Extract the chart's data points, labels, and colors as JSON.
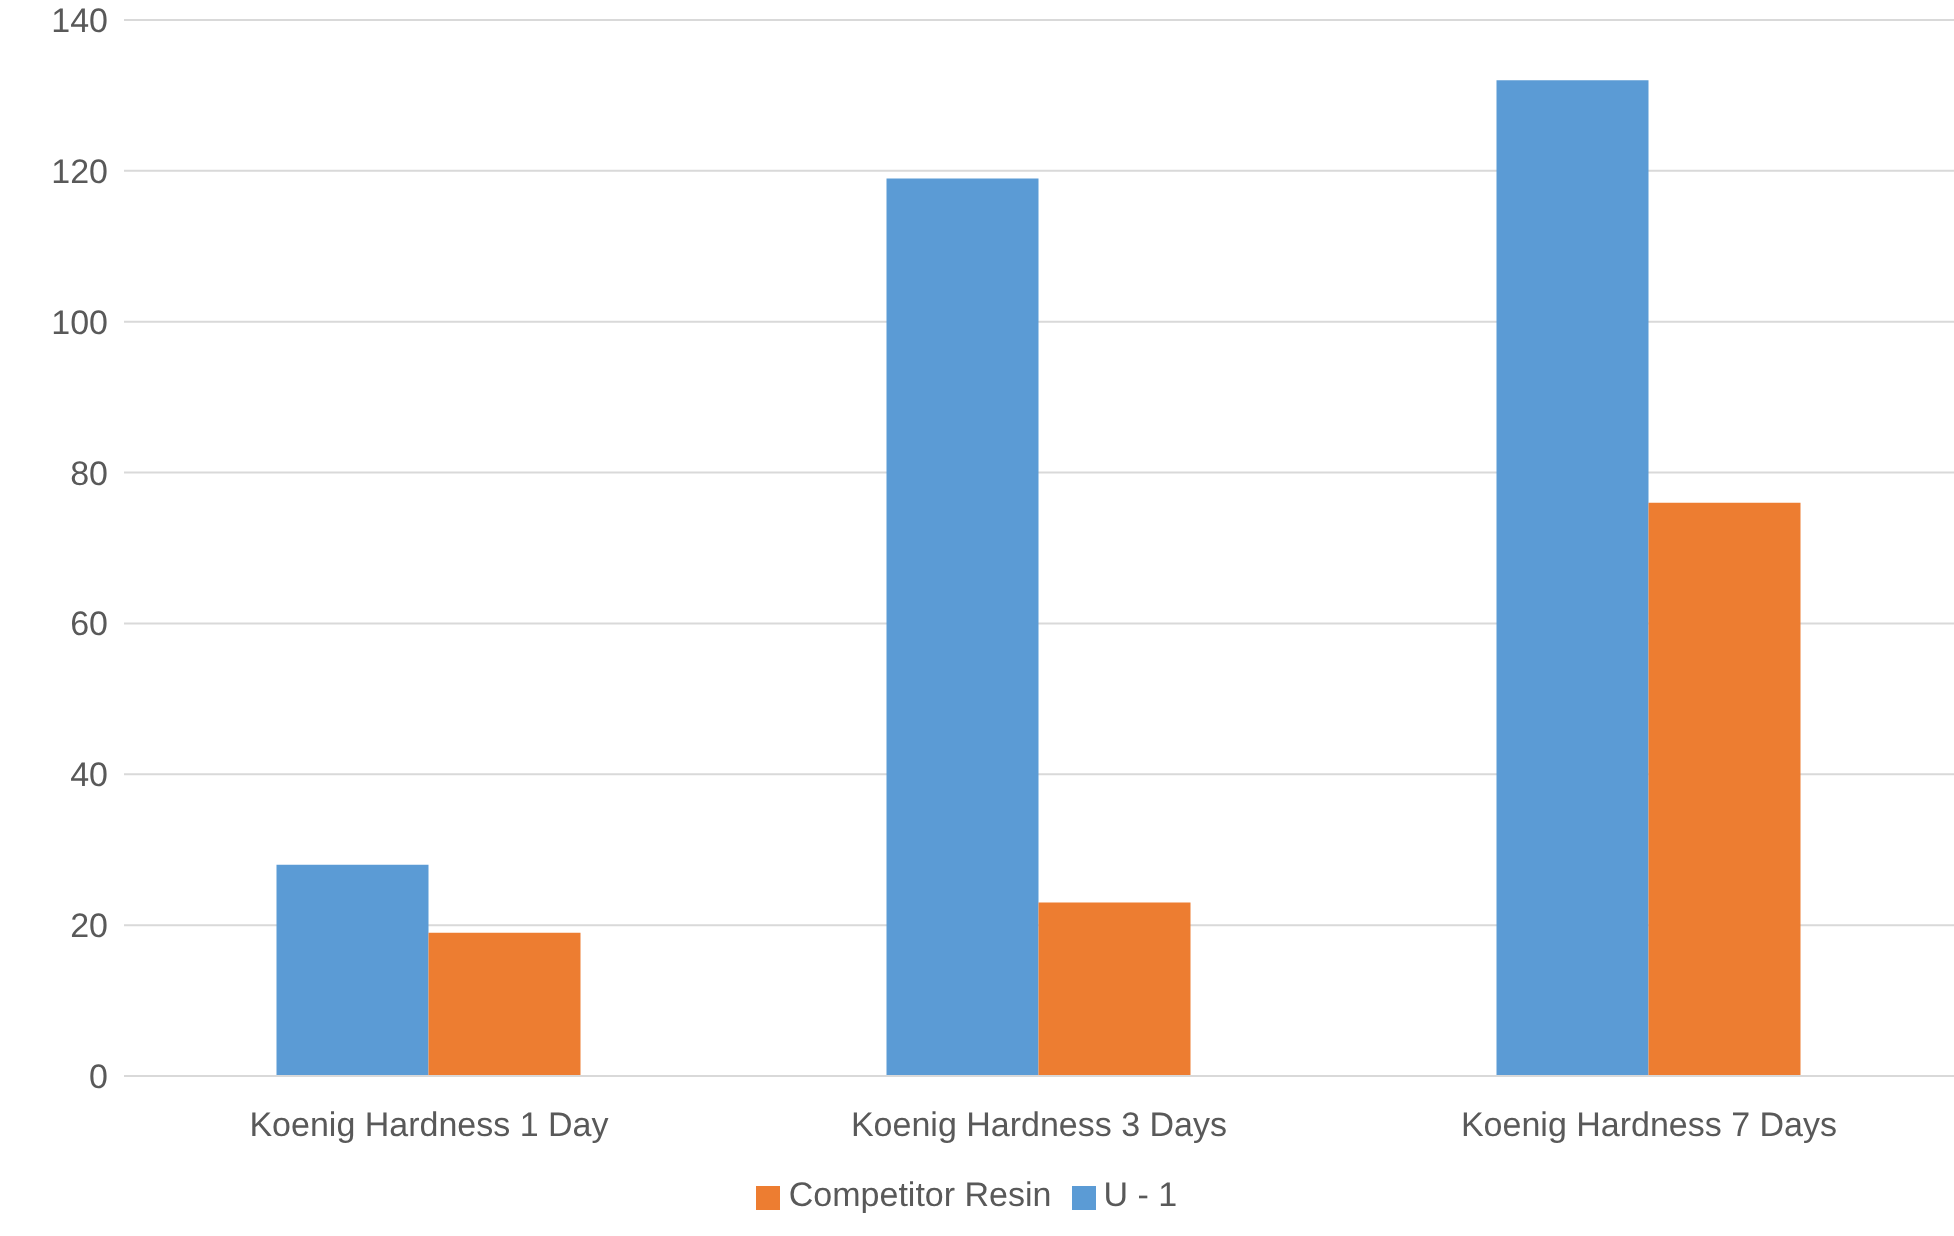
{
  "chart_data": {
    "type": "bar",
    "categories": [
      "Koenig Hardness 1 Day",
      "Koenig Hardness 3 Days",
      "Koenig Hardness 7 Days"
    ],
    "series": [
      {
        "name": "U - 1",
        "color": "#5b9bd5",
        "values": [
          28,
          119,
          132
        ]
      },
      {
        "name": "Competitor Resin",
        "color": "#ed7d31",
        "values": [
          19,
          23,
          76
        ]
      }
    ],
    "ylim": [
      0,
      140
    ],
    "yticks": [
      0,
      20,
      40,
      60,
      80,
      100,
      120,
      140
    ],
    "grid": "y",
    "legend": "bottom"
  }
}
